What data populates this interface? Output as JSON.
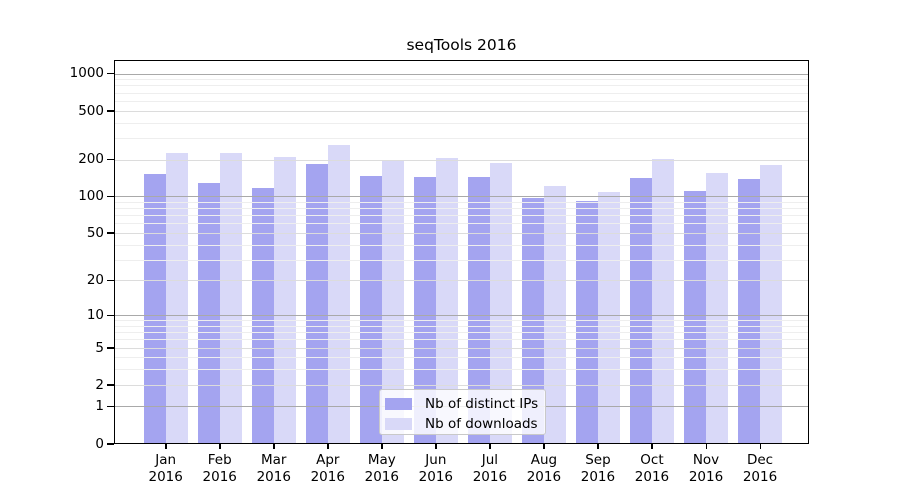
{
  "title": "seqTools 2016",
  "chart_data": {
    "type": "bar",
    "title": "seqTools 2016",
    "yscale": "log1p",
    "grid": "on",
    "ylim": [
      0,
      1276
    ],
    "x_month_labels": [
      "Jan",
      "Feb",
      "Mar",
      "Apr",
      "May",
      "Jun",
      "Jul",
      "Aug",
      "Sep",
      "Oct",
      "Nov",
      "Dec"
    ],
    "x_year_label": "2016",
    "ytick_values": [
      1000,
      500,
      200,
      100,
      50,
      20,
      10,
      5,
      2,
      1,
      0
    ],
    "ytick_labels": [
      "1000",
      "500",
      "200",
      "100",
      "50",
      "20",
      "10",
      "5",
      "2",
      "1",
      "0"
    ],
    "series": [
      {
        "name": "Nb of distinct IPs",
        "color": "#a4a4f0",
        "values": [
          151,
          128,
          116,
          185,
          148,
          143,
          143,
          96,
          91,
          142,
          111,
          139
        ]
      },
      {
        "name": "Nb of downloads",
        "color": "#d9d9f8",
        "values": [
          224,
          227,
          209,
          264,
          195,
          204,
          188,
          121,
          108,
          203,
          154,
          181
        ]
      }
    ],
    "legend": {
      "position": "bottom-center",
      "labels": [
        "Nb of distinct IPs",
        "Nb of downloads"
      ]
    },
    "colors": {
      "axis": "#000000",
      "grid_major": "#a9a9a9",
      "grid_labeled": "#dcdcdc",
      "grid_minor": "#eeeeee",
      "background": "#ffffff"
    }
  }
}
